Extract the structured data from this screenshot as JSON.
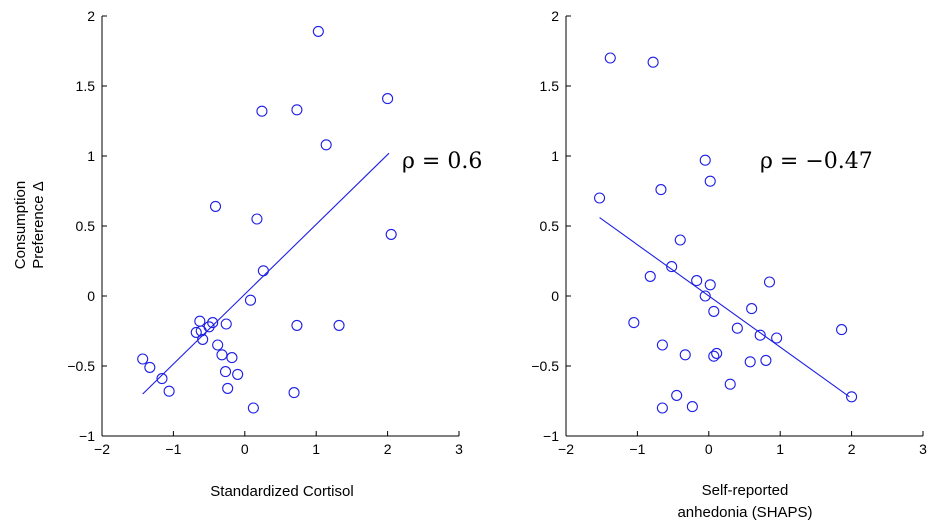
{
  "chart_data": [
    {
      "type": "scatter",
      "xlabel": "Standardized Cortisol",
      "ylabel": [
        "Consumption",
        "Preference Δ"
      ],
      "xlim": [
        -2,
        3
      ],
      "ylim": [
        -1,
        2
      ],
      "xticks": [
        "−2",
        "−1",
        "0",
        "1",
        "2",
        "3"
      ],
      "yticks": [
        "−1",
        "−0.5",
        "0",
        "0.5",
        "1",
        "1.5",
        "2"
      ],
      "annotation": "ρ = 0.6",
      "marker_color": "#1f1fe6",
      "points": [
        {
          "x": -1.43,
          "y": -0.45
        },
        {
          "x": -1.33,
          "y": -0.51
        },
        {
          "x": -1.16,
          "y": -0.59
        },
        {
          "x": -1.06,
          "y": -0.68
        },
        {
          "x": -0.68,
          "y": -0.26
        },
        {
          "x": -0.63,
          "y": -0.18
        },
        {
          "x": -0.61,
          "y": -0.25
        },
        {
          "x": -0.59,
          "y": -0.31
        },
        {
          "x": -0.5,
          "y": -0.22
        },
        {
          "x": -0.45,
          "y": -0.19
        },
        {
          "x": -0.41,
          "y": 0.64
        },
        {
          "x": -0.38,
          "y": -0.35
        },
        {
          "x": -0.32,
          "y": -0.42
        },
        {
          "x": -0.27,
          "y": -0.54
        },
        {
          "x": -0.26,
          "y": -0.2
        },
        {
          "x": -0.24,
          "y": -0.66
        },
        {
          "x": -0.18,
          "y": -0.44
        },
        {
          "x": -0.1,
          "y": -0.56
        },
        {
          "x": 0.08,
          "y": -0.03
        },
        {
          "x": 0.12,
          "y": -0.8
        },
        {
          "x": 0.17,
          "y": 0.55
        },
        {
          "x": 0.24,
          "y": 1.32
        },
        {
          "x": 0.26,
          "y": 0.18
        },
        {
          "x": 0.69,
          "y": -0.69
        },
        {
          "x": 0.73,
          "y": -0.21
        },
        {
          "x": 0.73,
          "y": 1.33
        },
        {
          "x": 1.03,
          "y": 1.89
        },
        {
          "x": 1.14,
          "y": 1.08
        },
        {
          "x": 1.32,
          "y": -0.21
        },
        {
          "x": 2.0,
          "y": 1.41
        },
        {
          "x": 2.05,
          "y": 0.44
        }
      ],
      "fit_line": [
        {
          "x": -1.43,
          "y": -0.7
        },
        {
          "x": 2.02,
          "y": 1.02
        }
      ]
    },
    {
      "type": "scatter",
      "xlabel": [
        "Self-reported",
        "anhedonia (SHAPS)"
      ],
      "ylabel": "",
      "xlim": [
        -2,
        3
      ],
      "ylim": [
        -1,
        2
      ],
      "xticks": [
        "−2",
        "−1",
        "0",
        "1",
        "2",
        "3"
      ],
      "yticks": [
        "−1",
        "−0.5",
        "0",
        "0.5",
        "1",
        "1.5",
        "2"
      ],
      "annotation": "ρ = −0.47",
      "marker_color": "#1f1fe6",
      "points": [
        {
          "x": -1.53,
          "y": 0.7
        },
        {
          "x": -1.38,
          "y": 1.7
        },
        {
          "x": -1.05,
          "y": -0.19
        },
        {
          "x": -0.82,
          "y": 0.14
        },
        {
          "x": -0.78,
          "y": 1.67
        },
        {
          "x": -0.67,
          "y": 0.76
        },
        {
          "x": -0.65,
          "y": -0.35
        },
        {
          "x": -0.65,
          "y": -0.8
        },
        {
          "x": -0.52,
          "y": 0.21
        },
        {
          "x": -0.45,
          "y": -0.71
        },
        {
          "x": -0.4,
          "y": 0.4
        },
        {
          "x": -0.33,
          "y": -0.42
        },
        {
          "x": -0.23,
          "y": -0.79
        },
        {
          "x": -0.17,
          "y": 0.11
        },
        {
          "x": -0.05,
          "y": 0.97
        },
        {
          "x": -0.05,
          "y": 0.0
        },
        {
          "x": 0.02,
          "y": 0.82
        },
        {
          "x": 0.02,
          "y": 0.08
        },
        {
          "x": 0.07,
          "y": -0.11
        },
        {
          "x": 0.07,
          "y": -0.43
        },
        {
          "x": 0.11,
          "y": -0.41
        },
        {
          "x": 0.3,
          "y": -0.63
        },
        {
          "x": 0.4,
          "y": -0.23
        },
        {
          "x": 0.58,
          "y": -0.47
        },
        {
          "x": 0.6,
          "y": -0.09
        },
        {
          "x": 0.72,
          "y": -0.28
        },
        {
          "x": 0.8,
          "y": -0.46
        },
        {
          "x": 0.85,
          "y": 0.1
        },
        {
          "x": 0.95,
          "y": -0.3
        },
        {
          "x": 1.86,
          "y": -0.24
        },
        {
          "x": 2.0,
          "y": -0.72
        }
      ],
      "fit_line": [
        {
          "x": -1.53,
          "y": 0.56
        },
        {
          "x": 1.97,
          "y": -0.72
        }
      ]
    }
  ]
}
